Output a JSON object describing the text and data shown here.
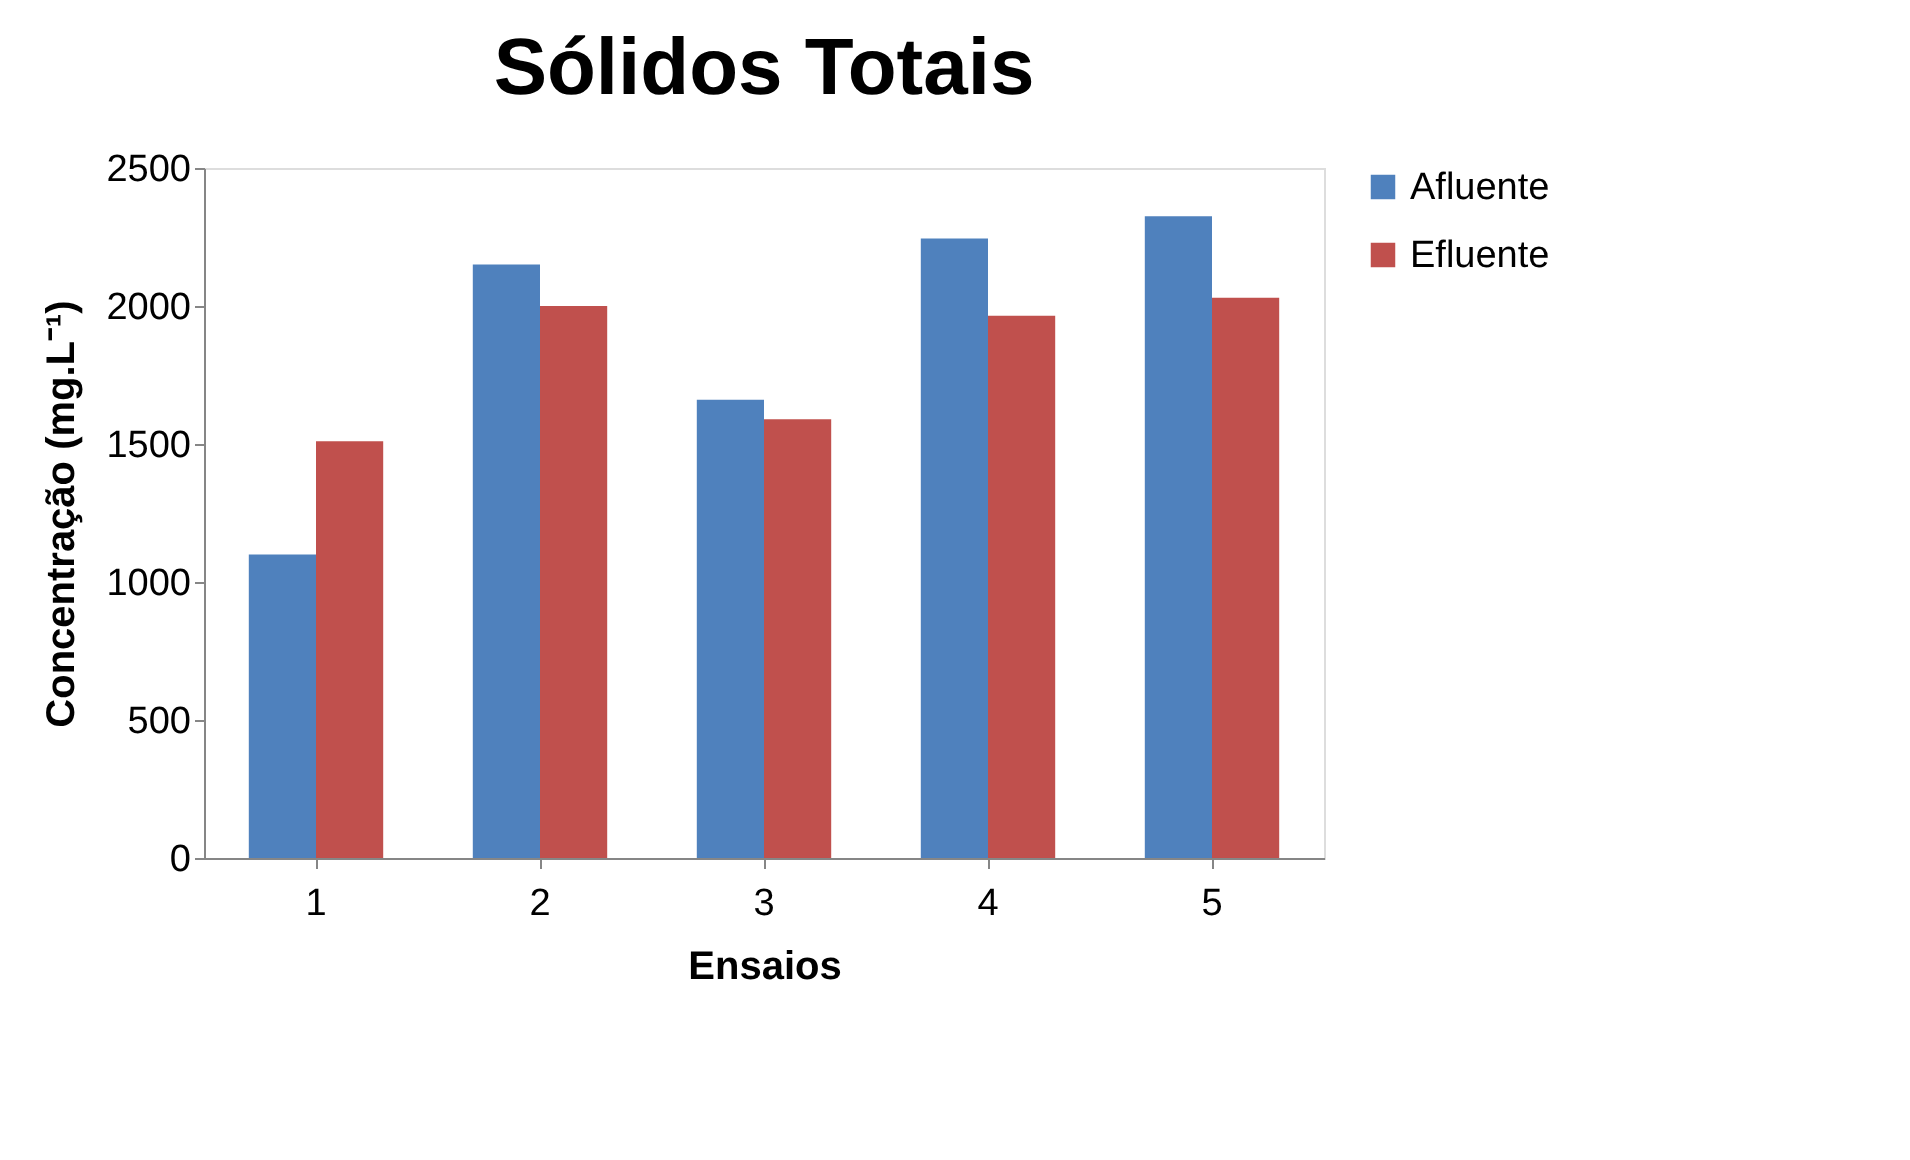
{
  "chart_data": {
    "type": "bar",
    "title": "Sólidos Totais",
    "xlabel": "Ensaios",
    "ylabel": "Concentração (mg.L⁻¹)",
    "categories": [
      "1",
      "2",
      "3",
      "4",
      "5"
    ],
    "series": [
      {
        "name": "Afluente",
        "color": "#4f81bd",
        "values": [
          1100,
          2150,
          1660,
          2245,
          2325
        ]
      },
      {
        "name": "Efluente",
        "color": "#c0504d",
        "values": [
          1510,
          2000,
          1590,
          1965,
          2030
        ]
      }
    ],
    "ylim": [
      0,
      2500
    ],
    "yticks": [
      0,
      500,
      1000,
      1500,
      2000,
      2500
    ],
    "grid": false,
    "legend": "right"
  }
}
